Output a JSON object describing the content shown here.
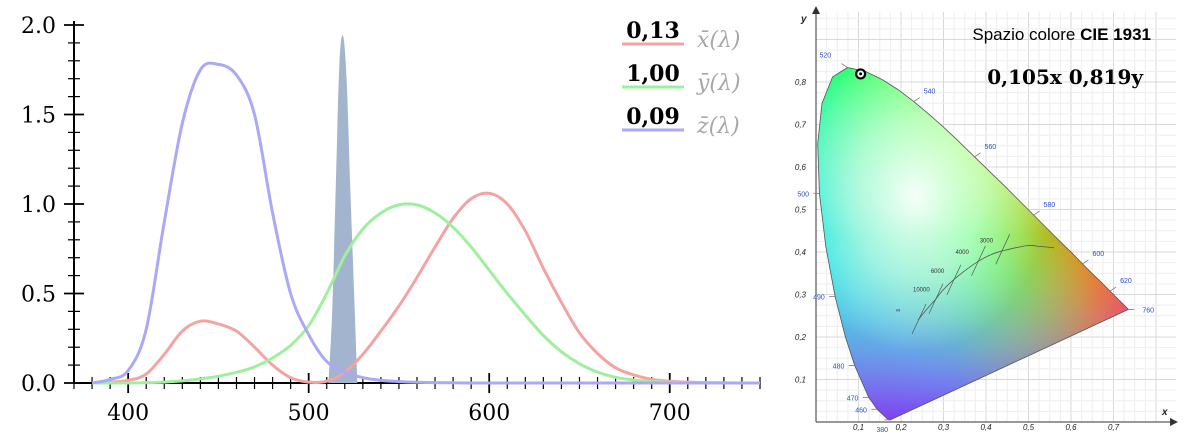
{
  "chart_data": [
    {
      "type": "line",
      "x": [
        380,
        390,
        400,
        410,
        420,
        430,
        440,
        450,
        460,
        470,
        480,
        490,
        500,
        510,
        520,
        530,
        540,
        550,
        560,
        570,
        580,
        590,
        600,
        610,
        620,
        630,
        640,
        650,
        660,
        670,
        680,
        690,
        700,
        710,
        720,
        730,
        740,
        750
      ],
      "series": [
        {
          "name": "x̄(λ)",
          "color": "#f4a3a3",
          "values": [
            0.0,
            0.005,
            0.015,
            0.05,
            0.16,
            0.29,
            0.345,
            0.33,
            0.29,
            0.2,
            0.1,
            0.03,
            0.005,
            0.01,
            0.06,
            0.16,
            0.29,
            0.43,
            0.59,
            0.76,
            0.92,
            1.03,
            1.06,
            1.0,
            0.85,
            0.64,
            0.45,
            0.28,
            0.165,
            0.085,
            0.045,
            0.02,
            0.01,
            0.005,
            0.002,
            0.001,
            0.0,
            0.0
          ]
        },
        {
          "name": "ȳ(λ)",
          "color": "#9ef09e",
          "values": [
            0.0,
            0.0,
            0.0,
            0.002,
            0.005,
            0.012,
            0.023,
            0.038,
            0.06,
            0.09,
            0.14,
            0.21,
            0.32,
            0.5,
            0.71,
            0.86,
            0.95,
            0.995,
            0.995,
            0.95,
            0.87,
            0.76,
            0.63,
            0.5,
            0.38,
            0.265,
            0.175,
            0.107,
            0.061,
            0.032,
            0.017,
            0.008,
            0.004,
            0.002,
            0.001,
            0.0,
            0.0,
            0.0
          ]
        },
        {
          "name": "z̄(λ)",
          "color": "#a9a9f6",
          "values": [
            0.0,
            0.02,
            0.07,
            0.3,
            0.9,
            1.45,
            1.75,
            1.78,
            1.72,
            1.5,
            0.95,
            0.5,
            0.27,
            0.12,
            0.06,
            0.03,
            0.015,
            0.008,
            0.004,
            0.002,
            0.001,
            0.0,
            0.0,
            0.0,
            0.0,
            0.0,
            0.0,
            0.0,
            0.0,
            0.0,
            0.0,
            0.0,
            0.0,
            0.0,
            0.0,
            0.0,
            0.0,
            0.0
          ]
        }
      ],
      "spectral_band": {
        "color": "#a2b4ce",
        "x": [
          511,
          513,
          515,
          517,
          519,
          521,
          523,
          525,
          527
        ],
        "values": [
          0.0,
          0.4,
          1.1,
          1.78,
          1.94,
          1.7,
          1.1,
          0.55,
          0.0
        ]
      },
      "xlim": [
        370,
        750
      ],
      "ylim": [
        0,
        2.0
      ],
      "x_ticks": [
        400,
        500,
        600,
        700
      ],
      "y_ticks": [
        "0.0",
        "0.5",
        "1.0",
        "1.5",
        "2.0"
      ],
      "legend_position": "top-right",
      "legend_values": [
        "0,13",
        "1,00",
        "0,09"
      ],
      "legend_labels": [
        "x̄(λ)",
        "ȳ(λ)",
        "z̄(λ)"
      ]
    },
    {
      "type": "scatter",
      "title_prefix": "Spazio colore",
      "title_bold": "CIE 1931",
      "xlabel": "x",
      "ylabel": "y",
      "xlim": [
        0,
        0.8
      ],
      "ylim": [
        0,
        0.9
      ],
      "x_ticks": [
        "0,1",
        "0,2",
        "0,3",
        "0,4",
        "0,5",
        "0,6",
        "0,7"
      ],
      "y_ticks": [
        "0,1",
        "0,2",
        "0,3",
        "0,4",
        "0,5",
        "0,6",
        "0,7",
        "0,8"
      ],
      "point": {
        "x": 0.105,
        "y": 0.819
      },
      "point_label": "0,105x 0,819y",
      "locus": [
        [
          0.175,
          0.005
        ],
        [
          0.174,
          0.005
        ],
        [
          0.172,
          0.005
        ],
        [
          0.17,
          0.006
        ],
        [
          0.166,
          0.009
        ],
        [
          0.161,
          0.014
        ],
        [
          0.144,
          0.03
        ],
        [
          0.124,
          0.058
        ],
        [
          0.091,
          0.133
        ],
        [
          0.069,
          0.201
        ],
        [
          0.045,
          0.295
        ],
        [
          0.023,
          0.413
        ],
        [
          0.008,
          0.538
        ],
        [
          0.004,
          0.655
        ],
        [
          0.014,
          0.75
        ],
        [
          0.039,
          0.812
        ],
        [
          0.074,
          0.834
        ],
        [
          0.114,
          0.826
        ],
        [
          0.155,
          0.806
        ],
        [
          0.193,
          0.782
        ],
        [
          0.23,
          0.754
        ],
        [
          0.266,
          0.724
        ],
        [
          0.302,
          0.692
        ],
        [
          0.337,
          0.659
        ],
        [
          0.373,
          0.624
        ],
        [
          0.409,
          0.589
        ],
        [
          0.444,
          0.555
        ],
        [
          0.479,
          0.52
        ],
        [
          0.512,
          0.487
        ],
        [
          0.545,
          0.454
        ],
        [
          0.575,
          0.424
        ],
        [
          0.603,
          0.397
        ],
        [
          0.627,
          0.372
        ],
        [
          0.648,
          0.351
        ],
        [
          0.666,
          0.334
        ],
        [
          0.68,
          0.32
        ],
        [
          0.692,
          0.308
        ],
        [
          0.702,
          0.298
        ],
        [
          0.735,
          0.265
        ]
      ],
      "wavelength_labels": [
        {
          "text": "380",
          "x": 0.175,
          "y": 0.005
        },
        {
          "text": "460",
          "x": 0.144,
          "y": 0.03
        },
        {
          "text": "470",
          "x": 0.124,
          "y": 0.058
        },
        {
          "text": "480",
          "x": 0.091,
          "y": 0.133
        },
        {
          "text": "490",
          "x": 0.045,
          "y": 0.295
        },
        {
          "text": "500",
          "x": 0.008,
          "y": 0.538
        },
        {
          "text": "520",
          "x": 0.074,
          "y": 0.834
        },
        {
          "text": "540",
          "x": 0.23,
          "y": 0.754
        },
        {
          "text": "560",
          "x": 0.373,
          "y": 0.624
        },
        {
          "text": "580",
          "x": 0.512,
          "y": 0.487
        },
        {
          "text": "600",
          "x": 0.627,
          "y": 0.372
        },
        {
          "text": "620",
          "x": 0.692,
          "y": 0.308
        },
        {
          "text": "760",
          "x": 0.735,
          "y": 0.265
        }
      ],
      "planckian": [
        [
          0.56,
          0.41
        ],
        [
          0.527,
          0.413
        ],
        [
          0.497,
          0.415
        ],
        [
          0.44,
          0.403
        ],
        [
          0.41,
          0.393
        ],
        [
          0.38,
          0.377
        ],
        [
          0.345,
          0.352
        ],
        [
          0.313,
          0.325
        ],
        [
          0.294,
          0.305
        ],
        [
          0.281,
          0.288
        ],
        [
          0.263,
          0.268
        ],
        [
          0.24,
          0.24
        ]
      ],
      "temperature_labels": [
        {
          "text": "3000",
          "x": 0.437,
          "y": 0.404
        },
        {
          "text": "4000",
          "x": 0.38,
          "y": 0.377
        },
        {
          "text": "6000",
          "x": 0.322,
          "y": 0.332
        },
        {
          "text": "10000",
          "x": 0.28,
          "y": 0.288
        },
        {
          "text": "∞",
          "x": 0.24,
          "y": 0.24
        }
      ]
    }
  ]
}
